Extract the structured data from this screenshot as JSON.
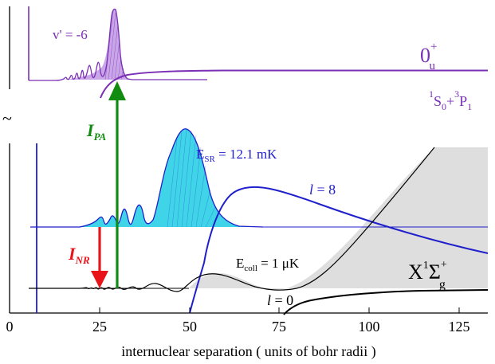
{
  "colors": {
    "purple": "#7a2fb5",
    "blue": "#1f1fcc",
    "cyan": "#39d2e6",
    "green": "#118c11",
    "red": "#e8141a",
    "gray": "#dedede",
    "black": "#000000"
  },
  "axis": {
    "xlabel": "internuclear separation ( units of bohr radii )",
    "ticks": [
      "0",
      "25",
      "50",
      "75",
      "100",
      "125"
    ],
    "tilde": "~"
  },
  "upper": {
    "vprime": "v' = -6",
    "state_main": "0",
    "state_sup": "+",
    "state_sub": "u",
    "asym_s_sup": "1",
    "asym_s": "S",
    "asym_s_sub": "0",
    "asym_plus": "+",
    "asym_p_sup": "3",
    "asym_p": "P",
    "asym_p_sub": "1"
  },
  "arrows": {
    "ipa_main": "I",
    "ipa_sub": "PA",
    "inr_main": "I",
    "inr_sub": "NR"
  },
  "lower": {
    "esr_main": "E",
    "esr_sub": "SR",
    "esr_value": " = 12.1 mK",
    "l8": "l",
    "l8_value": " = 8",
    "ecoll_main": "E",
    "ecoll_sub": "coll",
    "ecoll_value": " = 1 μK",
    "l0": "l",
    "l0_value": " = 0",
    "x_main": "X",
    "x_sup": "1",
    "x_sigma": "Σ",
    "x_sub": "g",
    "x_sup2": "+"
  }
}
